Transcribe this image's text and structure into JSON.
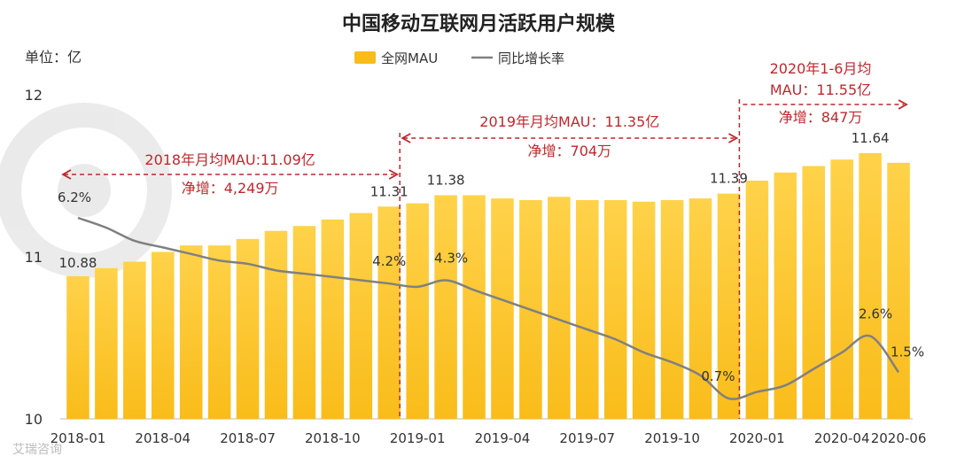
{
  "chart_data": {
    "type": "bar",
    "title": "中国移动互联网月活跃用户规模",
    "unit_label": "单位：亿",
    "legend": {
      "bar": "全网MAU",
      "line": "同比增长率"
    },
    "ylim": [
      10,
      12
    ],
    "yticks": [
      "10",
      "11",
      "12"
    ],
    "series": [
      {
        "name": "全网MAU",
        "type": "bar",
        "values": [
          10.88,
          10.93,
          10.97,
          11.03,
          11.07,
          11.07,
          11.11,
          11.16,
          11.19,
          11.23,
          11.27,
          11.31,
          11.33,
          11.38,
          11.38,
          11.36,
          11.35,
          11.37,
          11.35,
          11.35,
          11.34,
          11.35,
          11.36,
          11.39,
          11.47,
          11.52,
          11.56,
          11.6,
          11.64,
          11.58
        ]
      },
      {
        "name": "同比增长率",
        "type": "line",
        "values": [
          6.2,
          5.9,
          5.5,
          5.3,
          5.1,
          4.9,
          4.8,
          4.6,
          4.5,
          4.4,
          4.3,
          4.2,
          4.1,
          4.3,
          4.0,
          3.7,
          3.4,
          3.1,
          2.8,
          2.5,
          2.1,
          1.8,
          1.4,
          0.7,
          0.9,
          1.1,
          1.6,
          2.1,
          2.6,
          1.5
        ]
      }
    ],
    "categories": [
      "2018-01",
      "2018-02",
      "2018-03",
      "2018-04",
      "2018-05",
      "2018-06",
      "2018-07",
      "2018-08",
      "2018-09",
      "2018-10",
      "2018-11",
      "2018-12",
      "2019-01",
      "2019-02",
      "2019-03",
      "2019-04",
      "2019-05",
      "2019-06",
      "2019-07",
      "2019-08",
      "2019-09",
      "2019-10",
      "2019-11",
      "2019-12",
      "2020-01",
      "2020-02",
      "2020-03",
      "2020-04",
      "2020-05",
      "2020-06"
    ],
    "xtick_labels": [
      "2018-01",
      "2018-04",
      "2018-07",
      "2018-10",
      "2019-01",
      "2019-04",
      "2019-07",
      "2019-10",
      "2020-01",
      "2020-04",
      "2020-06"
    ],
    "bar_labels": [
      {
        "index": 0,
        "text": "10.88"
      },
      {
        "index": 11,
        "text": "11.31"
      },
      {
        "index": 13,
        "text": "11.38"
      },
      {
        "index": 23,
        "text": "11.39"
      },
      {
        "index": 28,
        "text": "11.64"
      }
    ],
    "line_labels": [
      {
        "index": 0,
        "text": "6.2%"
      },
      {
        "index": 11,
        "text": "4.2%"
      },
      {
        "index": 13,
        "text": "4.3%"
      },
      {
        "index": 23,
        "text": "0.7%"
      },
      {
        "index": 28,
        "text": "2.6%"
      },
      {
        "index": 29,
        "text": "1.5%"
      }
    ],
    "periods": [
      {
        "start": 0,
        "end": 11,
        "lines": [
          "2018年月均MAU:11.09亿",
          "净增：4,249万"
        ]
      },
      {
        "start": 12,
        "end": 23,
        "lines": [
          "2019年月均MAU：11.35亿",
          "净增：704万"
        ]
      },
      {
        "start": 24,
        "end": 29,
        "lines": [
          "2020年1-6月均",
          "MAU：11.55亿",
          "净增：847万"
        ]
      }
    ],
    "colors": {
      "bar": "#f9bc1a",
      "bar_top": "#ffd24a",
      "line": "#808080",
      "annotation": "#c0272d",
      "axis": "#d0d0d0"
    }
  },
  "watermark": "艾瑞咨询"
}
